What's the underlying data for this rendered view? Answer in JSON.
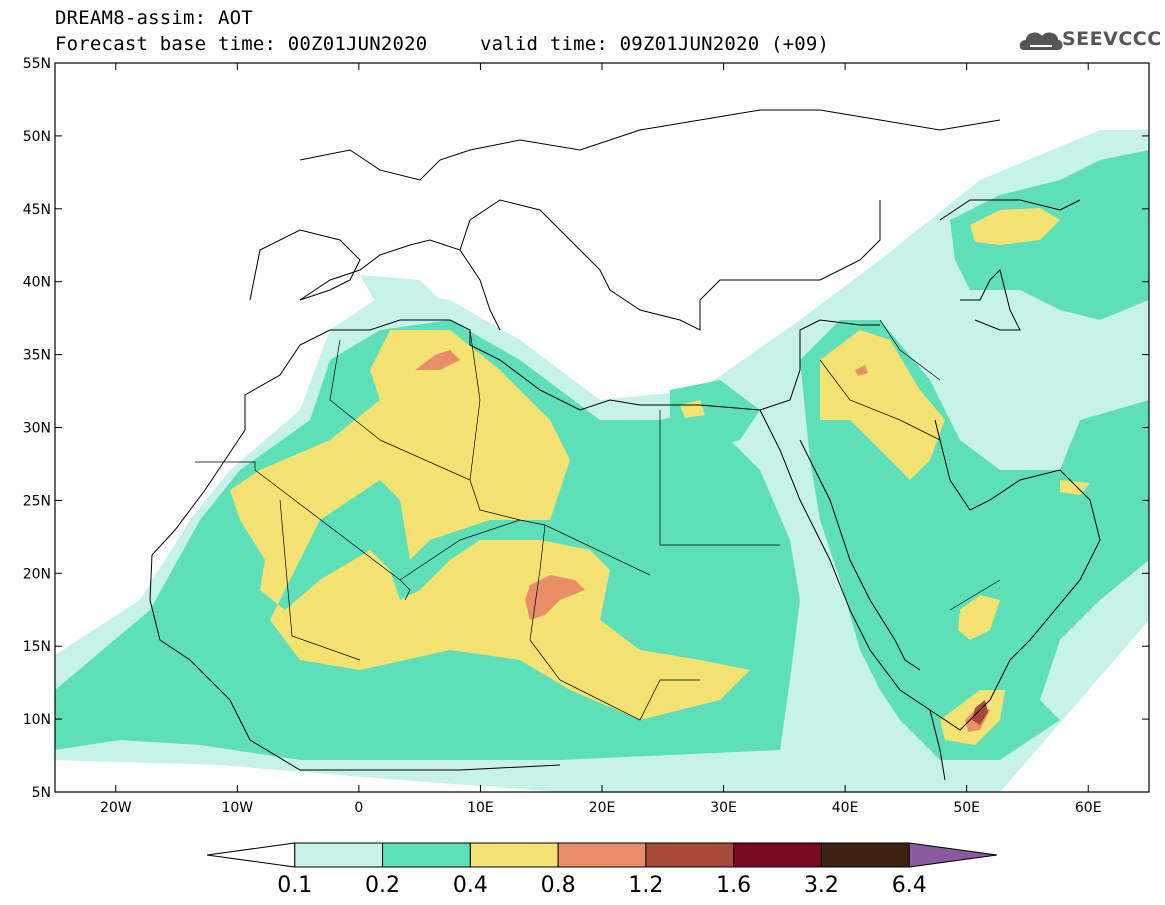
{
  "header": {
    "title": "DREAM8-assim: AOT",
    "base_time": "Forecast base time: 00Z01JUN2020",
    "valid_time": "valid time: 09Z01JUN2020 (+09)"
  },
  "logo": {
    "name": "SEEVCCC",
    "icon": "cloud-icon"
  },
  "map": {
    "lon_range": [
      -25,
      65
    ],
    "lat_range": [
      5,
      55
    ],
    "lon_ticks": [
      {
        "value": -20,
        "label": "20W"
      },
      {
        "value": -10,
        "label": "10W"
      },
      {
        "value": 0,
        "label": "0"
      },
      {
        "value": 10,
        "label": "10E"
      },
      {
        "value": 20,
        "label": "20E"
      },
      {
        "value": 30,
        "label": "30E"
      },
      {
        "value": 40,
        "label": "40E"
      },
      {
        "value": 50,
        "label": "50E"
      },
      {
        "value": 60,
        "label": "60E"
      }
    ],
    "lat_ticks": [
      {
        "value": 55,
        "label": "55N"
      },
      {
        "value": 50,
        "label": "50N"
      },
      {
        "value": 45,
        "label": "45N"
      },
      {
        "value": 40,
        "label": "40N"
      },
      {
        "value": 35,
        "label": "35N"
      },
      {
        "value": 30,
        "label": "30N"
      },
      {
        "value": 25,
        "label": "25N"
      },
      {
        "value": 20,
        "label": "20N"
      },
      {
        "value": 15,
        "label": "15N"
      },
      {
        "value": 10,
        "label": "10N"
      },
      {
        "value": 5,
        "label": "5N"
      }
    ]
  },
  "colorbar": {
    "colors": [
      "#ffffff",
      "#c6f2ea",
      "#5fdfb8",
      "#f4e372",
      "#e88f6a",
      "#a84a38",
      "#7a0a24",
      "#3d2412",
      "#8a5a9e"
    ],
    "labels": [
      "0.1",
      "0.2",
      "0.4",
      "0.8",
      "1.2",
      "1.6",
      "3.2",
      "6.4"
    ]
  }
}
